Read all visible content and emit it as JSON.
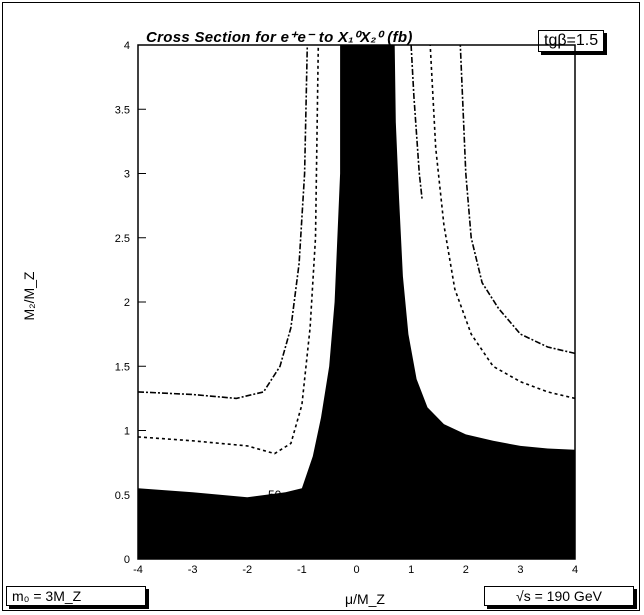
{
  "chart_title": "Cross Section for e⁺e⁻ to X₁⁰X₂⁰ (fb)",
  "tanbeta_label": "tgβ=1.5",
  "m0_label": "m₀ = 3M_Z",
  "sqrts_label": "√s = 190 GeV",
  "chart_data": {
    "type": "contour",
    "title": "Cross Section for e⁺e⁻ to X₁⁰X₂⁰ (fb)",
    "xlabel": "μ/M_Z",
    "ylabel": "M₂/M_Z",
    "xlim": [
      -4,
      4
    ],
    "ylim": [
      0,
      4
    ],
    "x_ticks": [
      "-4",
      "-3",
      "-2",
      "-1",
      "0",
      "1",
      "2",
      "3",
      "4"
    ],
    "y_ticks": [
      "0",
      "0.5",
      "1",
      "1.5",
      "2",
      "2.5",
      "3",
      "3.5",
      "4"
    ],
    "contour_label": "50",
    "grid": false,
    "filled_region": [
      [
        -4,
        0
      ],
      [
        4,
        0
      ],
      [
        4,
        0.85
      ],
      [
        3.5,
        0.86
      ],
      [
        3.0,
        0.88
      ],
      [
        2.5,
        0.92
      ],
      [
        2.0,
        0.97
      ],
      [
        1.6,
        1.05
      ],
      [
        1.3,
        1.18
      ],
      [
        1.1,
        1.4
      ],
      [
        0.95,
        1.75
      ],
      [
        0.85,
        2.2
      ],
      [
        0.78,
        2.8
      ],
      [
        0.72,
        3.4
      ],
      [
        0.7,
        4.0
      ],
      [
        -0.3,
        4.0
      ],
      [
        -0.3,
        3.0
      ],
      [
        -0.4,
        2.0
      ],
      [
        -0.5,
        1.5
      ],
      [
        -0.65,
        1.1
      ],
      [
        -0.8,
        0.8
      ],
      [
        -1.0,
        0.55
      ],
      [
        -1.3,
        0.52
      ],
      [
        -2.0,
        0.48
      ],
      [
        -3.0,
        0.52
      ],
      [
        -4,
        0.55
      ]
    ],
    "contours": [
      {
        "points": [
          [
            -4,
            1.3
          ],
          [
            -3,
            1.28
          ],
          [
            -2.2,
            1.25
          ],
          [
            -1.7,
            1.3
          ],
          [
            -1.4,
            1.5
          ],
          [
            -1.2,
            1.8
          ],
          [
            -1.05,
            2.3
          ],
          [
            -0.95,
            3.0
          ],
          [
            -0.9,
            4.0
          ]
        ]
      },
      {
        "points": [
          [
            -4,
            0.95
          ],
          [
            -3,
            0.92
          ],
          [
            -2.0,
            0.88
          ],
          [
            -1.5,
            0.82
          ],
          [
            -1.2,
            0.9
          ],
          [
            -1.0,
            1.2
          ],
          [
            -0.85,
            1.8
          ],
          [
            -0.75,
            2.5
          ],
          [
            -0.7,
            4.0
          ]
        ]
      },
      {
        "points": [
          [
            4,
            1.6
          ],
          [
            3.5,
            1.65
          ],
          [
            3.0,
            1.75
          ],
          [
            2.6,
            1.95
          ],
          [
            2.3,
            2.15
          ],
          [
            2.1,
            2.5
          ],
          [
            2.0,
            3.0
          ],
          [
            1.9,
            4.0
          ]
        ]
      },
      {
        "points": [
          [
            4,
            1.25
          ],
          [
            3.5,
            1.3
          ],
          [
            3.0,
            1.38
          ],
          [
            2.5,
            1.5
          ],
          [
            2.1,
            1.75
          ],
          [
            1.8,
            2.1
          ],
          [
            1.6,
            2.6
          ],
          [
            1.45,
            3.2
          ],
          [
            1.35,
            4.0
          ]
        ]
      },
      {
        "points": [
          [
            1.0,
            4.0
          ],
          [
            1.05,
            3.6
          ],
          [
            1.15,
            3.0
          ],
          [
            1.2,
            2.8
          ]
        ]
      }
    ]
  }
}
